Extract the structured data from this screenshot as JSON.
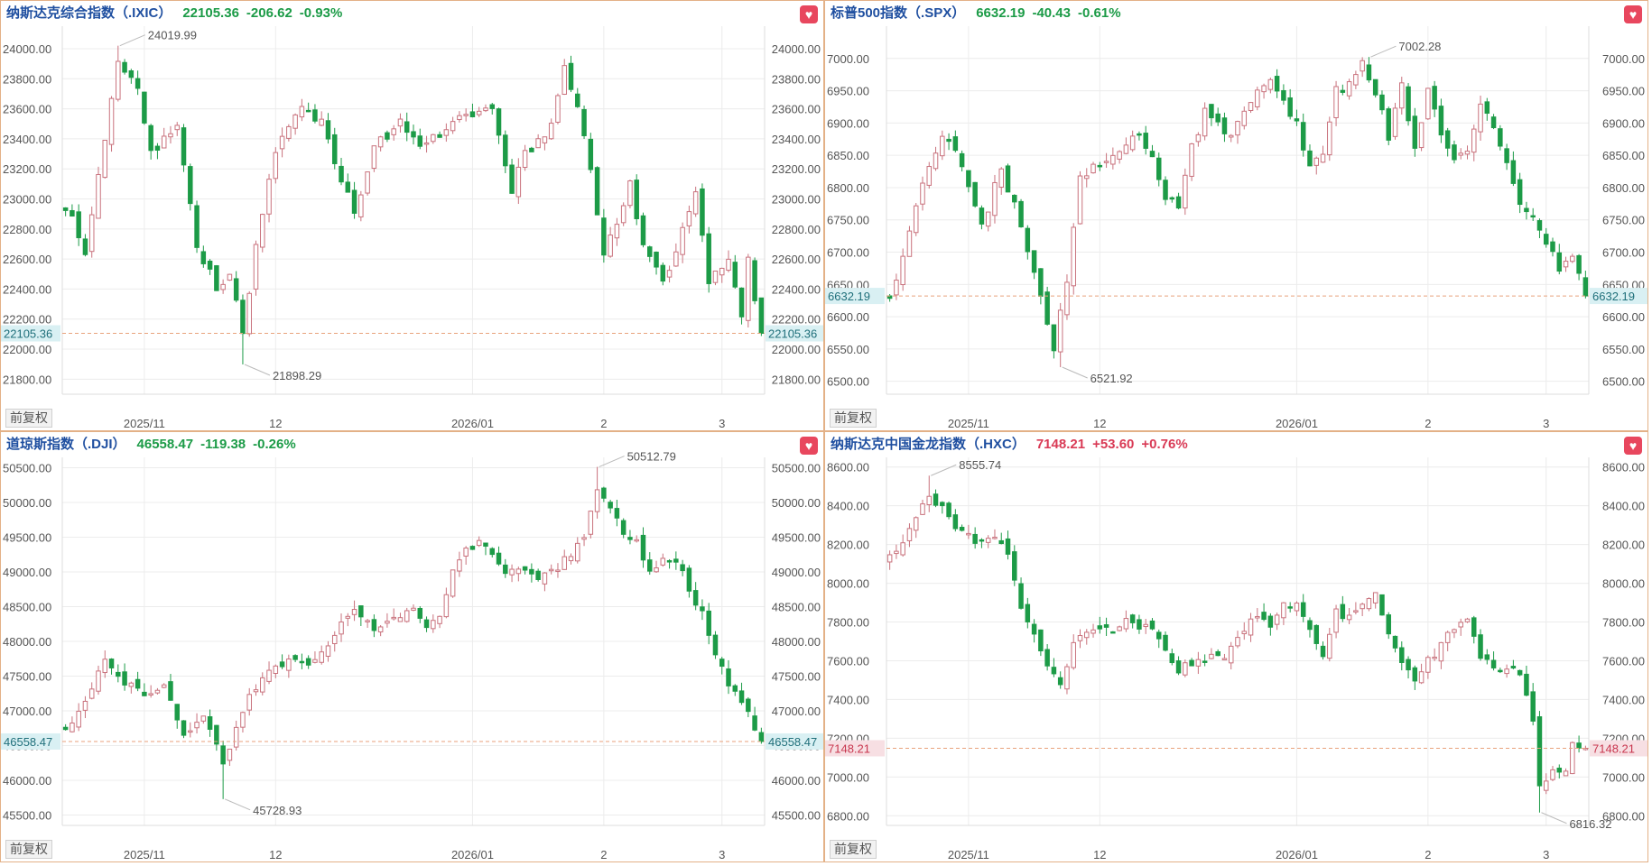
{
  "button_label": "前复权",
  "fav_icon": "heart-icon",
  "colors": {
    "up": "#c9727d",
    "down": "#1c9b47",
    "grid": "#ececec",
    "label": "#555555",
    "line": "#e8a27c"
  },
  "chart_data": [
    {
      "type": "candlestick",
      "title": "纳斯达克综合指数（.IXIC）",
      "price": "22105.36",
      "change": "-206.62",
      "change_pct": "-0.93%",
      "last": 22105.36,
      "last_label": "22105.36",
      "trend": "down",
      "ylim": [
        21700,
        24150
      ],
      "yticks": [
        21800,
        22000,
        22200,
        22400,
        22600,
        22800,
        23000,
        23200,
        23400,
        23600,
        23800,
        24000
      ],
      "ytick_labels": [
        "21800.00",
        "22000.00",
        "22200.00",
        "22400.00",
        "22600.00",
        "22800.00",
        "23000.00",
        "23200.00",
        "23400.00",
        "23600.00",
        "23800.00",
        "24000.00"
      ],
      "xticks": [
        {
          "label": "2025/11",
          "i": 12
        },
        {
          "label": "12",
          "i": 32
        },
        {
          "label": "2026/01",
          "i": 62
        },
        {
          "label": "2",
          "i": 82
        },
        {
          "label": "3",
          "i": 100
        }
      ],
      "n": 107,
      "high_label": "24019.99",
      "high_value": 24019.99,
      "high_i": 8,
      "low_label": "21898.29",
      "low_value": 21898.29,
      "low_i": 27,
      "anchors": [
        [
          0,
          22950
        ],
        [
          3,
          22650
        ],
        [
          6,
          23400
        ],
        [
          8,
          23920
        ],
        [
          11,
          23700
        ],
        [
          13,
          23300
        ],
        [
          17,
          23500
        ],
        [
          20,
          22700
        ],
        [
          23,
          22400
        ],
        [
          25,
          22520
        ],
        [
          27,
          22100
        ],
        [
          29,
          22700
        ],
        [
          32,
          23300
        ],
        [
          36,
          23620
        ],
        [
          39,
          23500
        ],
        [
          41,
          23250
        ],
        [
          44,
          22900
        ],
        [
          47,
          23330
        ],
        [
          51,
          23520
        ],
        [
          54,
          23380
        ],
        [
          58,
          23460
        ],
        [
          62,
          23580
        ],
        [
          65,
          23620
        ],
        [
          68,
          23050
        ],
        [
          70,
          23300
        ],
        [
          74,
          23480
        ],
        [
          76,
          23880
        ],
        [
          78,
          23600
        ],
        [
          80,
          23200
        ],
        [
          82,
          22650
        ],
        [
          84,
          22830
        ],
        [
          86,
          23100
        ],
        [
          88,
          22700
        ],
        [
          91,
          22450
        ],
        [
          94,
          22780
        ],
        [
          96,
          23050
        ],
        [
          98,
          22450
        ],
        [
          101,
          22600
        ],
        [
          103,
          22200
        ],
        [
          104,
          22600
        ],
        [
          106,
          22105
        ]
      ]
    },
    {
      "type": "candlestick",
      "title": "标普500指数（.SPX）",
      "price": "6632.19",
      "change": "-40.43",
      "change_pct": "-0.61%",
      "last": 6632.19,
      "last_label": "6632.19",
      "trend": "down",
      "ylim": [
        6480,
        7050
      ],
      "yticks": [
        6500,
        6550,
        6600,
        6650,
        6700,
        6750,
        6800,
        6850,
        6900,
        6950,
        7000
      ],
      "ytick_labels": [
        "6500.00",
        "6550.00",
        "6600.00",
        "6650.00",
        "6700.00",
        "6750.00",
        "6800.00",
        "6850.00",
        "6900.00",
        "6950.00",
        "7000.00"
      ],
      "xticks": [
        {
          "label": "2025/11",
          "i": 12
        },
        {
          "label": "12",
          "i": 32
        },
        {
          "label": "2026/01",
          "i": 62
        },
        {
          "label": "2",
          "i": 82
        },
        {
          "label": "3",
          "i": 100
        }
      ],
      "n": 107,
      "high_label": "7002.28",
      "high_value": 7002.28,
      "high_i": 73,
      "low_label": "6521.92",
      "low_value": 6521.92,
      "low_i": 26,
      "anchors": [
        [
          0,
          6630
        ],
        [
          3,
          6730
        ],
        [
          6,
          6840
        ],
        [
          8,
          6880
        ],
        [
          10,
          6850
        ],
        [
          12,
          6800
        ],
        [
          14,
          6740
        ],
        [
          17,
          6830
        ],
        [
          19,
          6770
        ],
        [
          21,
          6700
        ],
        [
          23,
          6630
        ],
        [
          25,
          6550
        ],
        [
          27,
          6660
        ],
        [
          29,
          6820
        ],
        [
          32,
          6840
        ],
        [
          35,
          6860
        ],
        [
          38,
          6880
        ],
        [
          40,
          6840
        ],
        [
          42,
          6790
        ],
        [
          44,
          6770
        ],
        [
          46,
          6860
        ],
        [
          48,
          6920
        ],
        [
          50,
          6900
        ],
        [
          52,
          6880
        ],
        [
          54,
          6920
        ],
        [
          56,
          6950
        ],
        [
          58,
          6960
        ],
        [
          60,
          6930
        ],
        [
          62,
          6900
        ],
        [
          64,
          6830
        ],
        [
          66,
          6860
        ],
        [
          68,
          6950
        ],
        [
          70,
          6960
        ],
        [
          72,
          6990
        ],
        [
          74,
          6950
        ],
        [
          76,
          6880
        ],
        [
          78,
          6960
        ],
        [
          80,
          6860
        ],
        [
          82,
          6950
        ],
        [
          84,
          6880
        ],
        [
          86,
          6840
        ],
        [
          88,
          6850
        ],
        [
          90,
          6930
        ],
        [
          92,
          6900
        ],
        [
          94,
          6840
        ],
        [
          96,
          6770
        ],
        [
          98,
          6760
        ],
        [
          100,
          6720
        ],
        [
          102,
          6670
        ],
        [
          104,
          6690
        ],
        [
          106,
          6632
        ]
      ]
    },
    {
      "type": "candlestick",
      "title": "道琼斯指数（.DJI）",
      "price": "46558.47",
      "change": "-119.38",
      "change_pct": "-0.26%",
      "last": 46558.47,
      "last_label": "46558.47",
      "trend": "down",
      "ylim": [
        45350,
        50650
      ],
      "yticks": [
        45500,
        46000,
        46500,
        47000,
        47500,
        48000,
        48500,
        49000,
        49500,
        50000,
        50500
      ],
      "ytick_labels": [
        "45500.00",
        "46000.00",
        "46500.00",
        "47000.00",
        "47500.00",
        "48000.00",
        "48500.00",
        "49000.00",
        "49500.00",
        "50000.00",
        "50500.00"
      ],
      "xticks": [
        {
          "label": "2025/11",
          "i": 12
        },
        {
          "label": "12",
          "i": 32
        },
        {
          "label": "2026/01",
          "i": 62
        },
        {
          "label": "2",
          "i": 82
        },
        {
          "label": "3",
          "i": 100
        }
      ],
      "n": 107,
      "high_label": "50512.79",
      "high_value": 50512.79,
      "high_i": 81,
      "low_label": "45728.93",
      "low_value": 45728.93,
      "low_i": 24,
      "anchors": [
        [
          0,
          46700
        ],
        [
          3,
          47200
        ],
        [
          6,
          47700
        ],
        [
          9,
          47400
        ],
        [
          12,
          47200
        ],
        [
          15,
          47400
        ],
        [
          18,
          46600
        ],
        [
          21,
          47000
        ],
        [
          24,
          46200
        ],
        [
          26,
          46700
        ],
        [
          28,
          47200
        ],
        [
          31,
          47600
        ],
        [
          34,
          47700
        ],
        [
          37,
          47700
        ],
        [
          39,
          47900
        ],
        [
          41,
          48100
        ],
        [
          44,
          48500
        ],
        [
          47,
          48200
        ],
        [
          50,
          48300
        ],
        [
          53,
          48400
        ],
        [
          55,
          48200
        ],
        [
          57,
          48400
        ],
        [
          59,
          49000
        ],
        [
          61,
          49300
        ],
        [
          63,
          49400
        ],
        [
          65,
          49200
        ],
        [
          67,
          49000
        ],
        [
          69,
          49100
        ],
        [
          71,
          48900
        ],
        [
          73,
          49000
        ],
        [
          75,
          49100
        ],
        [
          77,
          49300
        ],
        [
          79,
          49500
        ],
        [
          81,
          50200
        ],
        [
          83,
          50000
        ],
        [
          85,
          49500
        ],
        [
          87,
          49400
        ],
        [
          89,
          49000
        ],
        [
          91,
          49200
        ],
        [
          93,
          49200
        ],
        [
          95,
          48700
        ],
        [
          97,
          48500
        ],
        [
          99,
          47800
        ],
        [
          101,
          47400
        ],
        [
          103,
          47200
        ],
        [
          105,
          46700
        ],
        [
          106,
          46558
        ]
      ]
    },
    {
      "type": "candlestick",
      "title": "纳斯达克中国金龙指数（.HXC）",
      "price": "7148.21",
      "change": "+53.60",
      "change_pct": "+0.76%",
      "last": 7148.21,
      "last_label": "7148.21",
      "trend": "up",
      "ylim": [
        6750,
        8650
      ],
      "yticks": [
        6800,
        7000,
        7200,
        7400,
        7600,
        7800,
        8000,
        8200,
        8400,
        8600
      ],
      "ytick_labels": [
        "6800.00",
        "7000.00",
        "7200.00",
        "7400.00",
        "7600.00",
        "7800.00",
        "8000.00",
        "8200.00",
        "8400.00",
        "8600.00"
      ],
      "xticks": [
        {
          "label": "2025/11",
          "i": 12
        },
        {
          "label": "12",
          "i": 32
        },
        {
          "label": "2026/01",
          "i": 62
        },
        {
          "label": "2",
          "i": 82
        },
        {
          "label": "3",
          "i": 100
        }
      ],
      "n": 107,
      "high_label": "8555.74",
      "high_value": 8555.74,
      "high_i": 6,
      "low_label": "6816.32",
      "low_value": 6816.32,
      "low_i": 99,
      "anchors": [
        [
          0,
          8120
        ],
        [
          3,
          8280
        ],
        [
          6,
          8450
        ],
        [
          8,
          8400
        ],
        [
          10,
          8260
        ],
        [
          12,
          8250
        ],
        [
          14,
          8200
        ],
        [
          16,
          8250
        ],
        [
          18,
          8150
        ],
        [
          20,
          7850
        ],
        [
          22,
          7750
        ],
        [
          24,
          7600
        ],
        [
          26,
          7450
        ],
        [
          28,
          7720
        ],
        [
          30,
          7770
        ],
        [
          32,
          7790
        ],
        [
          34,
          7760
        ],
        [
          36,
          7820
        ],
        [
          38,
          7760
        ],
        [
          40,
          7780
        ],
        [
          42,
          7650
        ],
        [
          44,
          7560
        ],
        [
          46,
          7600
        ],
        [
          48,
          7620
        ],
        [
          50,
          7600
        ],
        [
          52,
          7680
        ],
        [
          54,
          7780
        ],
        [
          56,
          7830
        ],
        [
          58,
          7760
        ],
        [
          60,
          7900
        ],
        [
          62,
          7870
        ],
        [
          64,
          7780
        ],
        [
          66,
          7640
        ],
        [
          68,
          7840
        ],
        [
          70,
          7830
        ],
        [
          72,
          7900
        ],
        [
          74,
          7940
        ],
        [
          76,
          7760
        ],
        [
          78,
          7590
        ],
        [
          80,
          7480
        ],
        [
          82,
          7600
        ],
        [
          84,
          7680
        ],
        [
          86,
          7760
        ],
        [
          88,
          7800
        ],
        [
          90,
          7640
        ],
        [
          92,
          7580
        ],
        [
          94,
          7560
        ],
        [
          96,
          7540
        ],
        [
          98,
          7260
        ],
        [
          99,
          6930
        ],
        [
          101,
          7030
        ],
        [
          103,
          7050
        ],
        [
          104,
          7160
        ],
        [
          106,
          7148
        ]
      ]
    }
  ]
}
